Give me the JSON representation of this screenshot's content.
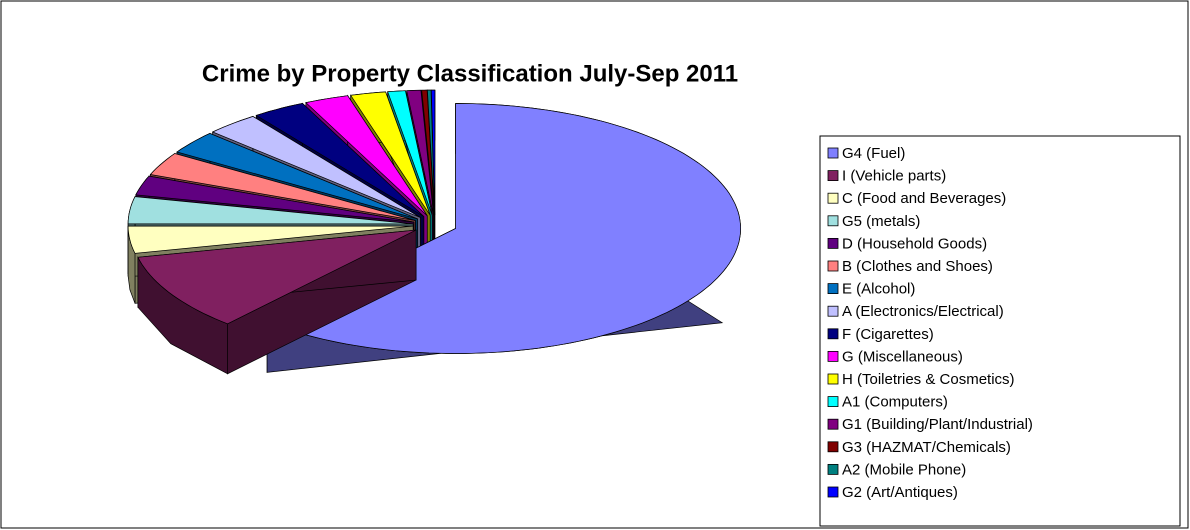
{
  "chart_data": {
    "type": "pie3d",
    "title": "Crime by Property Classification July-Sep 2011",
    "categories": [
      "G4 (Fuel)",
      "I (Vehicle parts)",
      "C (Food and Beverages)",
      "G5 (metals)",
      "D (Household Goods)",
      "B (Clothes and Shoes)",
      "E (Alcohol)",
      "A (Electronics/Electrical)",
      "F (Cigarettes)",
      "G (Miscellaneous)",
      "H (Toiletries & Cosmetics)",
      "A1 (Computers)",
      "G1 (Building/Plant/Industrial)",
      "G3 (HAZMAT/Chemicals)",
      "A2 (Mobile Phone)",
      "G2 (Art/Antiques)"
    ],
    "values": [
      61.5,
      10,
      3.5,
      3.5,
      2.5,
      3,
      3,
      3,
      3,
      2.5,
      2,
      1,
      0.8,
      0.3,
      0.2,
      0.2
    ],
    "colors": [
      "#8080ff",
      "#802060",
      "#ffffc0",
      "#a0e0e0",
      "#600080",
      "#ff8080",
      "#0070c0",
      "#c0c0ff",
      "#000080",
      "#ff00ff",
      "#ffff00",
      "#00ffff",
      "#800080",
      "#800000",
      "#008080",
      "#0000ff"
    ],
    "legend": "right"
  }
}
